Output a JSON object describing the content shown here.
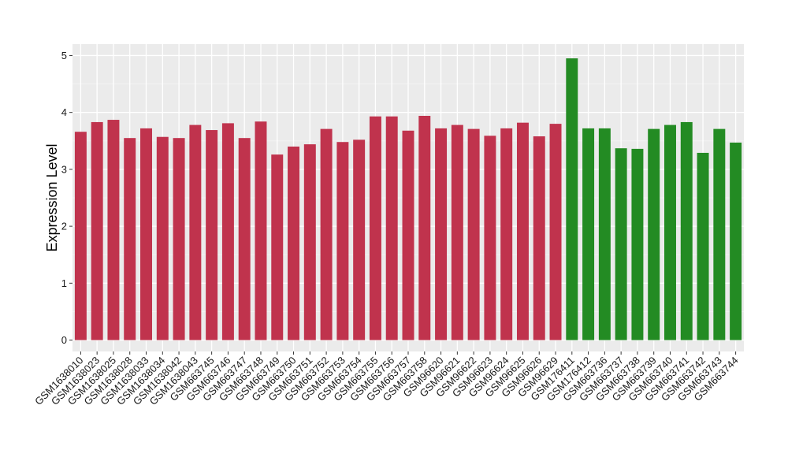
{
  "chart_data": {
    "type": "bar",
    "title": "",
    "xlabel": "",
    "ylabel": "Expression Level",
    "ylim": [
      -0.2,
      5.2
    ],
    "yticks": [
      0,
      1,
      2,
      3,
      4,
      5
    ],
    "grid": true,
    "legend": "none",
    "categories": [
      "GSM1638010",
      "GSM1638023",
      "GSM1638025",
      "GSM1638028",
      "GSM1638033",
      "GSM1638034",
      "GSM1638042",
      "GSM1638043",
      "GSM663745",
      "GSM663746",
      "GSM663747",
      "GSM663748",
      "GSM663749",
      "GSM663750",
      "GSM663751",
      "GSM663752",
      "GSM663753",
      "GSM663754",
      "GSM663755",
      "GSM663756",
      "GSM663757",
      "GSM663758",
      "GSM96620",
      "GSM96621",
      "GSM96622",
      "GSM96623",
      "GSM96624",
      "GSM96625",
      "GSM96626",
      "GSM96629",
      "GSM176411",
      "GSM176412",
      "GSM663736",
      "GSM663737",
      "GSM663738",
      "GSM663739",
      "GSM663740",
      "GSM663741",
      "GSM663742",
      "GSM663743",
      "GSM663744"
    ],
    "values": [
      3.66,
      3.83,
      3.87,
      3.55,
      3.72,
      3.57,
      3.55,
      3.78,
      3.69,
      3.81,
      3.55,
      3.84,
      3.26,
      3.4,
      3.44,
      3.71,
      3.48,
      3.52,
      3.93,
      3.93,
      3.68,
      3.94,
      3.72,
      3.78,
      3.71,
      3.59,
      3.72,
      3.82,
      3.58,
      3.8,
      4.95,
      3.72,
      3.72,
      3.37,
      3.36,
      3.71,
      3.78,
      3.83,
      3.29,
      3.71,
      3.47
    ],
    "groups": [
      "a",
      "a",
      "a",
      "a",
      "a",
      "a",
      "a",
      "a",
      "a",
      "a",
      "a",
      "a",
      "a",
      "a",
      "a",
      "a",
      "a",
      "a",
      "a",
      "a",
      "a",
      "a",
      "a",
      "a",
      "a",
      "a",
      "a",
      "a",
      "a",
      "a",
      "b",
      "b",
      "b",
      "b",
      "b",
      "b",
      "b",
      "b",
      "b",
      "b",
      "b"
    ],
    "colors": {
      "a": "#c0334d",
      "b": "#238b23",
      "panel_background": "#ebebeb",
      "grid_major": "#ffffff",
      "grid_minor": "#f3f3f3"
    }
  }
}
